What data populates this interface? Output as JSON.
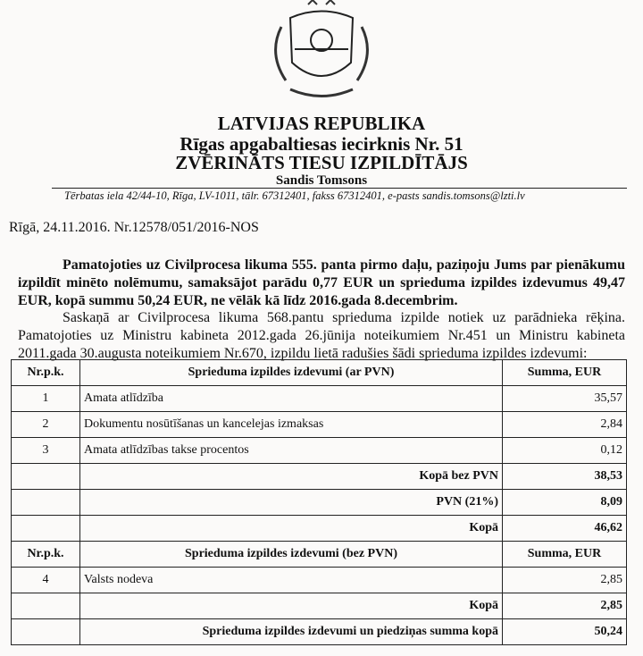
{
  "header": {
    "country": "LATVIJAS REPUBLIKA",
    "district": "Rīgas apgabaltiesas iecirknis Nr. 51",
    "office": "ZVĒRINĀTS TIESU IZPILDĪTĀJS",
    "name": "Sandis Tomsons",
    "address": "Tērbatas iela 42/44-10, Rīga, LV-1011, tālr. 67312401, fakss 67312401, e-pasts sandis.tomsons@lzti.lv"
  },
  "date_line": "Rīgā, 24.11.2016. Nr.12578/051/2016-NOS",
  "paragraph1": "Pamatojoties uz Civilprocesa likuma 555. panta pirmo daļu, paziņoju Jums par pienākumu izpildīt minēto nolēmumu, samaksājot parādu 0,77 EUR un sprieduma izpildes izdevumus 49,47 EUR, kopā summu 50,24 EUR, ne vēlāk kā līdz 2016.gada 8.decembrim.",
  "paragraph2": "Saskaņā ar Civilprocesa likuma 568.pantu sprieduma izpilde notiek uz parādnieka rēķina. Pamatojoties uz Ministru kabineta 2012.gada 26.jūnija noteikumiem Nr.451 un Ministru kabineta 2011.gada 30.augusta noteikumiem Nr.670, izpildu lietā radušies šādi sprieduma izpildes izdevumi:",
  "table": {
    "header1": {
      "nr": "Nr.p.k.",
      "desc": "Sprieduma izpildes izdevumi (ar PVN)",
      "sum": "Summa, EUR"
    },
    "rows1": [
      {
        "nr": "1",
        "desc": "Amata atlīdzība",
        "sum": "35,57"
      },
      {
        "nr": "2",
        "desc": "Dokumentu nosūtīšanas un kancelejas izmaksas",
        "sum": "2,84"
      },
      {
        "nr": "3",
        "desc": "Amata atlīdzības takse procentos",
        "sum": "0,12"
      }
    ],
    "subtotal_label": "Kopā bez PVN",
    "subtotal": "38,53",
    "vat_label": "PVN (21%)",
    "vat": "8,09",
    "total1_label": "Kopā",
    "total1": "46,62",
    "header2": {
      "nr": "Nr.p.k.",
      "desc": "Sprieduma izpildes izdevumi (bez PVN)",
      "sum": "Summa, EUR"
    },
    "rows2": [
      {
        "nr": "4",
        "desc": "Valsts nodeva",
        "sum": "2,85"
      }
    ],
    "total2_label": "Kopā",
    "total2": "2,85",
    "grand_label": "Sprieduma izpildes izdevumi un piedziņas summa kopā",
    "grand": "50,24"
  }
}
